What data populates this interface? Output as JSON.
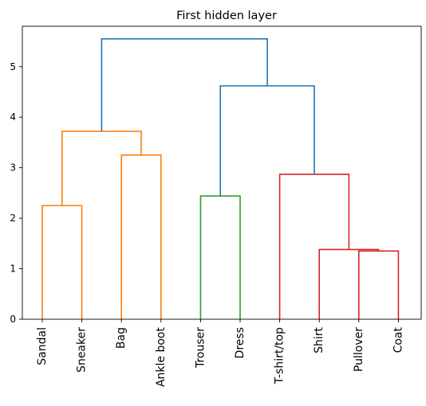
{
  "chart_data": {
    "type": "dendrogram",
    "title": "First hidden layer",
    "leaves": [
      "Sandal",
      "Sneaker",
      "Bag",
      "Ankle boot",
      "Trouser",
      "Dress",
      "T-shirt/top",
      "Shirt",
      "Pullover",
      "Coat"
    ],
    "ylim": [
      0,
      5.8
    ],
    "yticks": [
      0,
      1,
      2,
      3,
      4,
      5
    ],
    "links": [
      {
        "left": "Sandal",
        "right": "Sneaker",
        "height": 2.25,
        "color": "#ff7f0e"
      },
      {
        "left": "Bag",
        "right": "Ankle boot",
        "height": 3.25,
        "color": "#ff7f0e"
      },
      {
        "left": "Sandal+Sneaker",
        "right": "Bag+Ankle boot",
        "height": 3.72,
        "color": "#ff7f0e"
      },
      {
        "left": "Trouser",
        "right": "Dress",
        "height": 2.44,
        "color": "#2ca02c"
      },
      {
        "left": "Pullover",
        "right": "Coat",
        "height": 1.35,
        "color": "#d62728"
      },
      {
        "left": "Shirt",
        "right": "Pullover+Coat",
        "height": 1.38,
        "color": "#d62728"
      },
      {
        "left": "T-shirt/top",
        "right": "Shirt+Pullover+Coat",
        "height": 2.87,
        "color": "#d62728"
      },
      {
        "left": "Trouser+Dress",
        "right": "T-shirt/top+Shirt+Pullover+Coat",
        "height": 4.62,
        "color": "#1f77b4"
      },
      {
        "left": "Sandal+Sneaker+Bag+Ankle boot",
        "right": "Trouser+Dress+T-shirt/top+Shirt+Pullover+Coat",
        "height": 5.55,
        "color": "#1f77b4"
      }
    ]
  }
}
